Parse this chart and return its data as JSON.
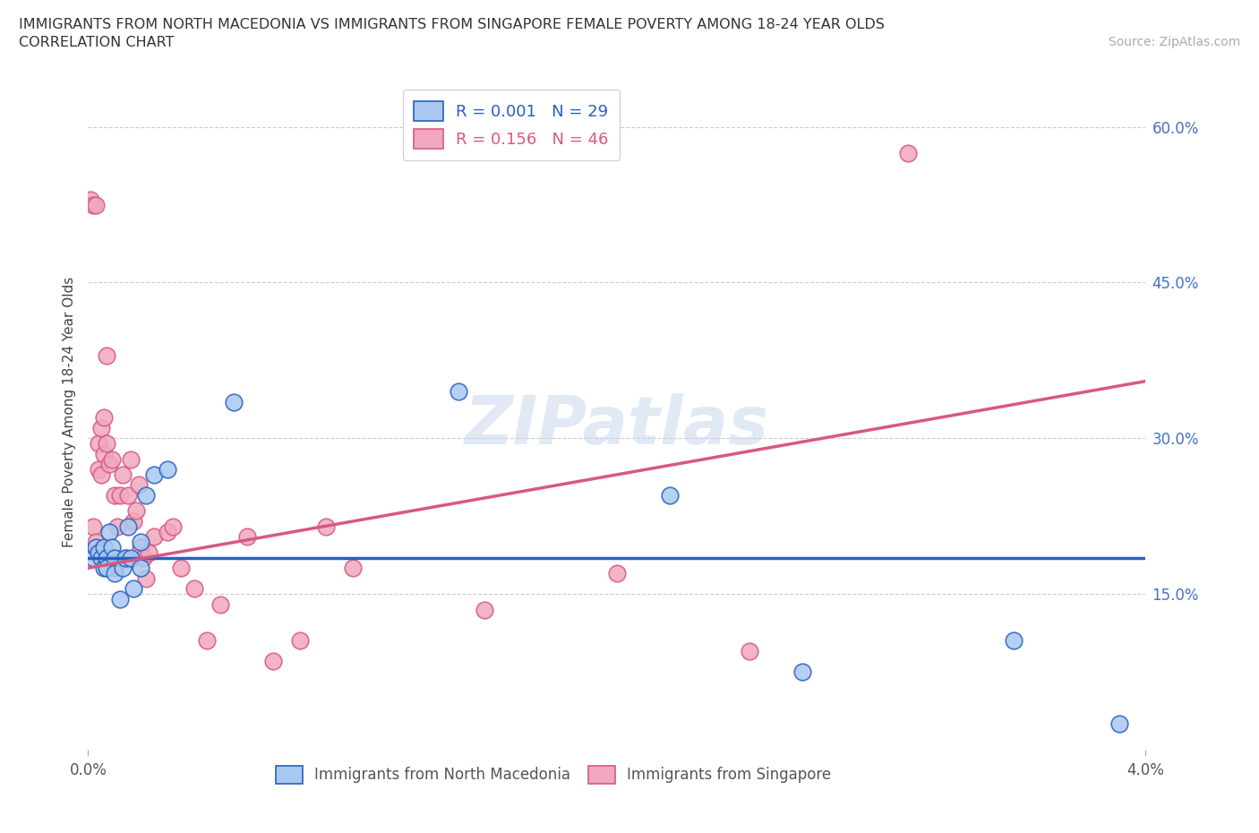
{
  "title_line1": "IMMIGRANTS FROM NORTH MACEDONIA VS IMMIGRANTS FROM SINGAPORE FEMALE POVERTY AMONG 18-24 YEAR OLDS",
  "title_line2": "CORRELATION CHART",
  "source": "Source: ZipAtlas.com",
  "ylabel": "Female Poverty Among 18-24 Year Olds",
  "xlim": [
    0.0,
    0.04
  ],
  "ylim": [
    0.0,
    0.65
  ],
  "yticks": [
    0.15,
    0.3,
    0.45,
    0.6
  ],
  "ytick_labels": [
    "15.0%",
    "30.0%",
    "45.0%",
    "60.0%"
  ],
  "color_blue": "#a8c8f0",
  "color_pink": "#f0a8be",
  "line_blue": "#2860c0",
  "line_pink": "#d85880",
  "trendline_blue_y0": 0.185,
  "trendline_blue_y1": 0.185,
  "trendline_pink_y0": 0.175,
  "trendline_pink_y1": 0.355,
  "north_macedonia_x": [
    0.0002,
    0.0003,
    0.0004,
    0.0005,
    0.0006,
    0.0006,
    0.0007,
    0.0007,
    0.0008,
    0.0009,
    0.001,
    0.001,
    0.0012,
    0.0013,
    0.0014,
    0.0015,
    0.0016,
    0.0017,
    0.002,
    0.002,
    0.0022,
    0.0025,
    0.003,
    0.0055,
    0.014,
    0.022,
    0.027,
    0.035,
    0.039
  ],
  "north_macedonia_y": [
    0.185,
    0.195,
    0.19,
    0.185,
    0.175,
    0.195,
    0.185,
    0.175,
    0.21,
    0.195,
    0.185,
    0.17,
    0.145,
    0.175,
    0.185,
    0.215,
    0.185,
    0.155,
    0.2,
    0.175,
    0.245,
    0.265,
    0.27,
    0.335,
    0.345,
    0.245,
    0.075,
    0.105,
    0.025
  ],
  "singapore_x": [
    0.0001,
    0.0002,
    0.0002,
    0.0003,
    0.0003,
    0.0004,
    0.0004,
    0.0005,
    0.0005,
    0.0006,
    0.0006,
    0.0007,
    0.0007,
    0.0008,
    0.0009,
    0.001,
    0.001,
    0.0011,
    0.0012,
    0.0013,
    0.0014,
    0.0015,
    0.0016,
    0.0017,
    0.0018,
    0.0019,
    0.002,
    0.0021,
    0.0022,
    0.0023,
    0.0025,
    0.003,
    0.0032,
    0.0035,
    0.004,
    0.0045,
    0.005,
    0.006,
    0.007,
    0.008,
    0.009,
    0.01,
    0.015,
    0.02,
    0.025,
    0.031
  ],
  "singapore_y": [
    0.53,
    0.525,
    0.215,
    0.525,
    0.2,
    0.295,
    0.27,
    0.31,
    0.265,
    0.285,
    0.32,
    0.38,
    0.295,
    0.275,
    0.28,
    0.175,
    0.245,
    0.215,
    0.245,
    0.265,
    0.185,
    0.245,
    0.28,
    0.22,
    0.23,
    0.255,
    0.195,
    0.185,
    0.165,
    0.19,
    0.205,
    0.21,
    0.215,
    0.175,
    0.155,
    0.105,
    0.14,
    0.205,
    0.085,
    0.105,
    0.215,
    0.175,
    0.135,
    0.17,
    0.095,
    0.575
  ]
}
